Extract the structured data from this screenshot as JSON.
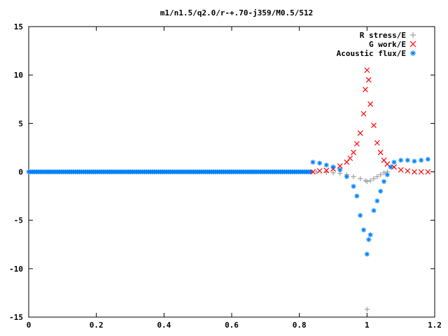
{
  "chart_data": {
    "type": "scatter",
    "title": "m1/n1.5/q2.0/r-+.70-j359/M0.5/512",
    "xlabel": "",
    "ylabel": "",
    "xlim": [
      0,
      1.2
    ],
    "ylim": [
      -15,
      15
    ],
    "xticks": [
      "0",
      "0.2",
      "0.4",
      "0.6",
      "0.8",
      "1",
      "1.2"
    ],
    "yticks": [
      "15",
      "10",
      "5",
      "0",
      "-5",
      "-10",
      "-15"
    ],
    "grid": false,
    "legend_position": "top-right",
    "series": [
      {
        "name": "R stress/E",
        "marker": "plus",
        "color": "#a0a0a0",
        "points": [
          [
            0.85,
            0.0
          ],
          [
            0.88,
            -0.05
          ],
          [
            0.9,
            -0.1
          ],
          [
            0.92,
            -0.15
          ],
          [
            0.94,
            -0.3
          ],
          [
            0.96,
            -0.5
          ],
          [
            0.98,
            -0.7
          ],
          [
            0.995,
            -0.9
          ],
          [
            1.0,
            -1.0
          ],
          [
            1.01,
            -0.9
          ],
          [
            1.02,
            -0.7
          ],
          [
            1.03,
            -0.5
          ],
          [
            1.04,
            -0.3
          ],
          [
            1.05,
            -0.1
          ],
          [
            1.06,
            0.0
          ],
          [
            1.0,
            -14.2
          ]
        ]
      },
      {
        "name": "G work/E",
        "marker": "cross",
        "color": "#ff0000",
        "points": [
          [
            0.84,
            0.0
          ],
          [
            0.86,
            0.1
          ],
          [
            0.88,
            0.15
          ],
          [
            0.9,
            0.3
          ],
          [
            0.92,
            0.6
          ],
          [
            0.94,
            1.0
          ],
          [
            0.95,
            1.4
          ],
          [
            0.96,
            2.0
          ],
          [
            0.97,
            2.9
          ],
          [
            0.98,
            4.0
          ],
          [
            0.99,
            6.0
          ],
          [
            0.995,
            8.5
          ],
          [
            1.0,
            10.5
          ],
          [
            1.005,
            9.5
          ],
          [
            1.01,
            7.0
          ],
          [
            1.02,
            4.8
          ],
          [
            1.03,
            3.0
          ],
          [
            1.04,
            2.0
          ],
          [
            1.05,
            1.2
          ],
          [
            1.06,
            0.8
          ],
          [
            1.08,
            0.5
          ],
          [
            1.1,
            0.2
          ],
          [
            1.12,
            0.1
          ],
          [
            1.14,
            0.0
          ],
          [
            1.16,
            0.0
          ],
          [
            1.18,
            0.0
          ]
        ]
      },
      {
        "name": "Acoustic flux/E",
        "marker": "star",
        "color": "#0080ff",
        "points": [
          [
            0.84,
            1.0
          ],
          [
            0.86,
            0.9
          ],
          [
            0.88,
            0.7
          ],
          [
            0.9,
            0.5
          ],
          [
            0.92,
            0.2
          ],
          [
            0.94,
            -0.5
          ],
          [
            0.96,
            -1.5
          ],
          [
            0.97,
            -2.5
          ],
          [
            0.98,
            -4.5
          ],
          [
            0.99,
            -6.0
          ],
          [
            1.0,
            -8.5
          ],
          [
            1.005,
            -7.0
          ],
          [
            1.01,
            -6.5
          ],
          [
            1.02,
            -4.0
          ],
          [
            1.03,
            -3.0
          ],
          [
            1.04,
            -2.0
          ],
          [
            1.05,
            -1.0
          ],
          [
            1.06,
            -0.3
          ],
          [
            1.07,
            0.5
          ],
          [
            1.08,
            1.0
          ],
          [
            1.1,
            1.2
          ],
          [
            1.12,
            1.2
          ],
          [
            1.14,
            1.1
          ],
          [
            1.16,
            1.2
          ],
          [
            1.18,
            1.3
          ]
        ]
      }
    ]
  }
}
